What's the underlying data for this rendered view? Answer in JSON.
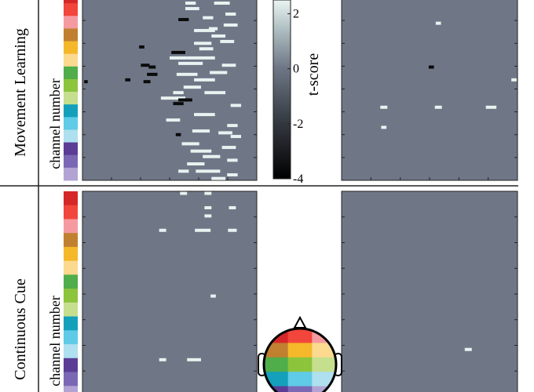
{
  "figure": {
    "row_labels": [
      "Movement Learning",
      "Continuous Cue"
    ],
    "ylabel": "channel number",
    "colorbar_label": "t-score",
    "colorbar_ticks": [
      "2",
      "0",
      "-2",
      "-4"
    ]
  },
  "colors": {
    "background_value": "#6f7787",
    "positive": "#e8f2f0",
    "negative": "#0a0a0a",
    "channel_groups": [
      "#d62728",
      "#f2463c",
      "#f59aa0",
      "#c08030",
      "#f5b82a",
      "#fbd98e",
      "#4fad4a",
      "#8cc43c",
      "#c5df8e",
      "#14a0bb",
      "#5fcbe6",
      "#aee0ef",
      "#5b3d96",
      "#7b68b5",
      "#b2a3d4"
    ]
  },
  "chart_data": [
    {
      "type": "heatmap",
      "name": "Movement Learning - left",
      "ylabel": "channel number",
      "xlim": [
        0,
        100
      ],
      "ylim": [
        0,
        100
      ],
      "positive_cells": [
        [
          62,
          97,
          6
        ],
        [
          80,
          97,
          9
        ],
        [
          63,
          94,
          8
        ],
        [
          85,
          91,
          6
        ],
        [
          72,
          89,
          6
        ],
        [
          85,
          85,
          8
        ],
        [
          75,
          83,
          5
        ],
        [
          70,
          82,
          12
        ],
        [
          78,
          79,
          8
        ],
        [
          83,
          76,
          8
        ],
        [
          69,
          75,
          10
        ],
        [
          71,
          72,
          8
        ],
        [
          55,
          67,
          10
        ],
        [
          68,
          67,
          16
        ],
        [
          62,
          64,
          14
        ],
        [
          84,
          63,
          8
        ],
        [
          60,
          58,
          12
        ],
        [
          78,
          59,
          10
        ],
        [
          70,
          55,
          12
        ],
        [
          63,
          51,
          10
        ],
        [
          55,
          48,
          6
        ],
        [
          76,
          48,
          12
        ],
        [
          52,
          45,
          14
        ],
        [
          88,
          41,
          6
        ],
        [
          70,
          36,
          12
        ],
        [
          52,
          33,
          8
        ],
        [
          86,
          30,
          6
        ],
        [
          68,
          27,
          10
        ],
        [
          82,
          26,
          8
        ],
        [
          88,
          24,
          6
        ],
        [
          62,
          20,
          10
        ],
        [
          84,
          18,
          8
        ],
        [
          68,
          16,
          12
        ],
        [
          74,
          13,
          10
        ],
        [
          86,
          11,
          6
        ],
        [
          65,
          9,
          10
        ],
        [
          58,
          5,
          6
        ],
        [
          72,
          5,
          14
        ],
        [
          86,
          3,
          6
        ],
        [
          78,
          1,
          8
        ]
      ],
      "negative_cells": [
        [
          58,
          88,
          6
        ],
        [
          34,
          73,
          3
        ],
        [
          55,
          70,
          8
        ],
        [
          36,
          63,
          5
        ],
        [
          40,
          62,
          4
        ],
        [
          40,
          58,
          6
        ],
        [
          26,
          55,
          3
        ],
        [
          37,
          54,
          4
        ],
        [
          2,
          54,
          2
        ],
        [
          59,
          44,
          8
        ],
        [
          55,
          42,
          6
        ],
        [
          55,
          25,
          3
        ]
      ]
    },
    {
      "type": "heatmap",
      "name": "Movement Learning - right",
      "xlim": [
        0,
        100
      ],
      "ylim": [
        0,
        100
      ],
      "positive_cells": [
        [
          55,
          86,
          3
        ],
        [
          98,
          55,
          3
        ],
        [
          24,
          40,
          4
        ],
        [
          55,
          40,
          4
        ],
        [
          85,
          40,
          6
        ],
        [
          24,
          29,
          3
        ]
      ],
      "negative_cells": [
        [
          51,
          62,
          3
        ]
      ]
    },
    {
      "type": "colorbar",
      "label": "t-score",
      "ticks": [
        2,
        0,
        -2,
        -4
      ],
      "range": [
        -4,
        2.5
      ]
    },
    {
      "type": "heatmap",
      "name": "Continuous Cue - left",
      "ylabel": "channel number",
      "xlim": [
        0,
        100
      ],
      "ylim": [
        0,
        100
      ],
      "positive_cells": [
        [
          58,
          99,
          4
        ],
        [
          72,
          99,
          4
        ],
        [
          72,
          92,
          4
        ],
        [
          86,
          92,
          4
        ],
        [
          72,
          88,
          4
        ],
        [
          46,
          81,
          4
        ],
        [
          69,
          81,
          9
        ],
        [
          86,
          81,
          5
        ],
        [
          75,
          49,
          3
        ],
        [
          46,
          18,
          4
        ],
        [
          64,
          18,
          8
        ]
      ],
      "negative_cells": []
    },
    {
      "type": "heatmap",
      "name": "Continuous Cue - right",
      "xlim": [
        0,
        100
      ],
      "ylim": [
        0,
        100
      ],
      "positive_cells": [
        [
          72,
          23,
          4
        ]
      ],
      "negative_cells": []
    }
  ]
}
